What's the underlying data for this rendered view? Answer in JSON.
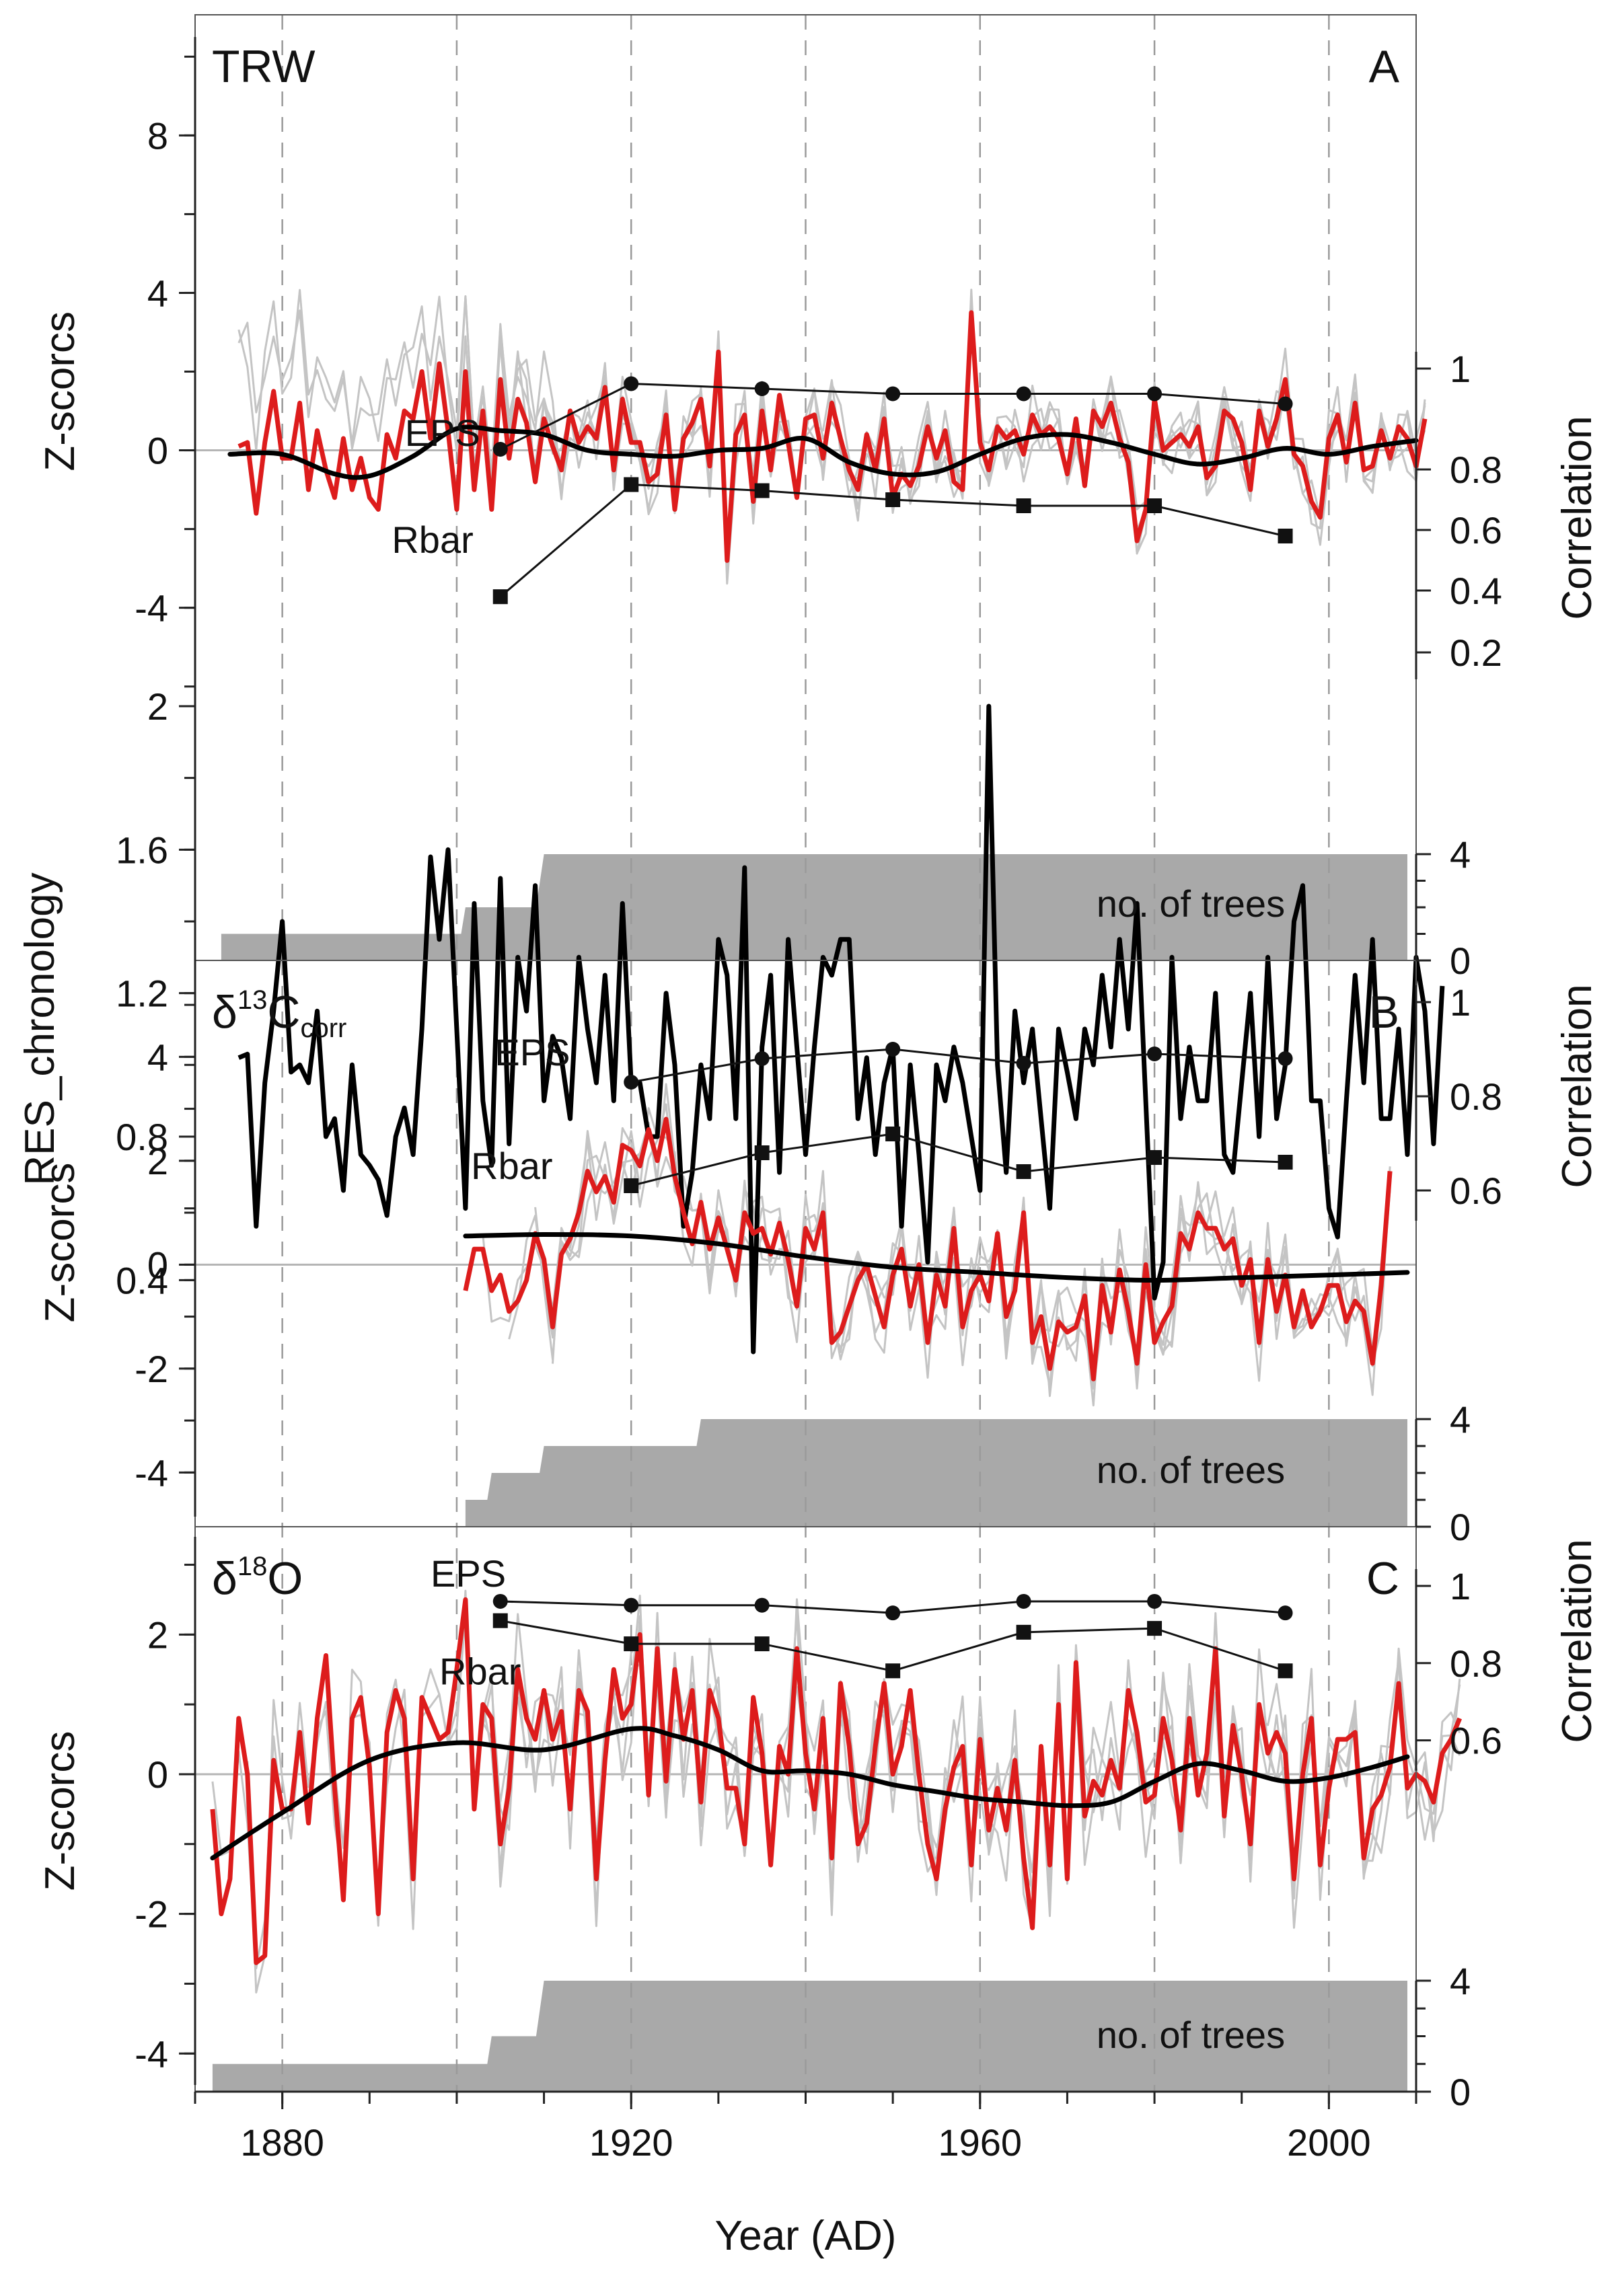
{
  "chart_data": {
    "type": "line",
    "xlabel": "Year (AD)",
    "xlim": [
      1870,
      2010
    ],
    "xticks": [
      1880,
      1920,
      1960,
      2000
    ],
    "gridlines_x": [
      1880,
      1900,
      1920,
      1940,
      1960,
      1980,
      2000
    ],
    "panels": [
      {
        "id": "A",
        "label": "A",
        "title": "TRW",
        "res": {
          "ylabel": "RES_chronology",
          "ylim": [
            0.2,
            2.0
          ],
          "ticks": [
            0.4,
            0.8,
            1.2,
            1.6,
            2.0
          ],
          "tick_labels": [
            "0.4",
            "0.8",
            "1.2",
            "1.6",
            "2"
          ],
          "start_year": 1875,
          "values": [
            1.02,
            1.03,
            0.55,
            0.95,
            1.15,
            1.4,
            0.98,
            1.0,
            0.95,
            1.15,
            0.8,
            0.85,
            0.65,
            1.0,
            0.75,
            0.72,
            0.68,
            0.58,
            0.8,
            0.88,
            0.75,
            1.1,
            1.58,
            1.35,
            1.6,
            1.1,
            0.6,
            1.45,
            0.9,
            0.72,
            1.52,
            0.78,
            1.3,
            1.15,
            1.5,
            0.9,
            1.08,
            1.02,
            0.85,
            1.3,
            1.1,
            0.95,
            1.25,
            0.9,
            1.45,
            0.95,
            0.95,
            0.8,
            0.8,
            1.2,
            1.0,
            0.55,
            0.7,
            1.0,
            0.85,
            1.35,
            1.25,
            0.85,
            1.55,
            0.2,
            1.05,
            1.25,
            0.7,
            1.35,
            1.05,
            0.75,
            1.05,
            1.3,
            1.25,
            1.35,
            1.35,
            0.85,
            1.02,
            0.75,
            0.95,
            1.05,
            0.55,
            1.0,
            0.75,
            0.45,
            1.0,
            0.9,
            1.05,
            0.95,
            0.8,
            0.65,
            2.0,
            1.0,
            0.7,
            1.15,
            0.95,
            1.1,
            0.85,
            0.6,
            1.1,
            0.98,
            0.85,
            1.1,
            1.0,
            1.25,
            1.05,
            1.35,
            1.1,
            1.45,
            0.9,
            0.35,
            0.45,
            1.3,
            0.85,
            1.05,
            0.9,
            0.9,
            1.2,
            0.75,
            0.7,
            0.95,
            1.2,
            0.8,
            1.3,
            0.85,
            1.0,
            1.4,
            1.5,
            0.9,
            0.9,
            0.6,
            0.52,
            0.9,
            1.25,
            0.95,
            1.35,
            0.85,
            0.85,
            1.1,
            0.75,
            1.3,
            1.15,
            0.78,
            1.22
          ]
        },
        "z": {
          "ylabel": "Z-scorcs",
          "ylim": [
            -6.5,
            10.5
          ],
          "ticks": [
            -4,
            0,
            4,
            8
          ],
          "tick_labels": [
            "-4",
            "0",
            "4",
            "8"
          ],
          "mean_start_year": 1875,
          "mean": [
            0.1,
            0.2,
            -1.6,
            0.2,
            1.5,
            -0.2,
            -0.2,
            1.2,
            -1.0,
            0.5,
            -0.5,
            -1.2,
            0.3,
            -1.0,
            -0.2,
            -1.2,
            -1.5,
            0.4,
            -0.2,
            1.0,
            0.8,
            2.0,
            0.3,
            2.2,
            0.5,
            -1.5,
            2.0,
            -1.0,
            1.0,
            -1.5,
            1.8,
            -0.2,
            1.3,
            0.7,
            -0.8,
            0.8,
            0.1,
            -0.5,
            1.0,
            0.2,
            0.6,
            0.3,
            1.6,
            -0.5,
            1.3,
            0.2,
            0.2,
            -0.8,
            -0.6,
            0.9,
            -1.5,
            0.3,
            0.7,
            1.3,
            -0.4,
            2.5,
            -2.8,
            0.4,
            0.9,
            -1.3,
            1.0,
            -0.5,
            1.4,
            0.2,
            -1.2,
            0.8,
            0.9,
            -0.2,
            1.2,
            0.3,
            -0.5,
            -1.0,
            0.4,
            -0.5,
            0.8,
            -1.2,
            -0.6,
            -0.9,
            -0.4,
            0.6,
            -0.2,
            0.5,
            -0.8,
            -1.0,
            3.5,
            0.2,
            -0.5,
            0.6,
            0.3,
            0.5,
            -0.1,
            0.9,
            0.4,
            0.6,
            0.3,
            -0.6,
            0.8,
            -0.9,
            1.0,
            0.6,
            1.2,
            0.3,
            -0.3,
            -2.3,
            -1.5,
            1.3,
            0.0,
            0.2,
            0.4,
            0.1,
            0.6,
            -0.7,
            -0.4,
            1.0,
            0.8,
            0.2,
            -1.0,
            1.0,
            0.1,
            0.8,
            1.8,
            -0.1,
            -0.4,
            -1.3,
            -1.7,
            0.3,
            0.9,
            -0.3,
            1.2,
            -0.5,
            -0.4,
            0.5,
            -0.2,
            0.6,
            0.3,
            -0.4,
            0.8
          ],
          "spline_x": [
            1874,
            1880,
            1886,
            1890,
            1895,
            1900,
            1905,
            1910,
            1915,
            1920,
            1925,
            1930,
            1935,
            1940,
            1945,
            1950,
            1955,
            1960,
            1965,
            1970,
            1975,
            1980,
            1985,
            1990,
            1995,
            2000,
            2005,
            2010
          ],
          "spline_y": [
            -0.1,
            -0.1,
            -0.6,
            -0.65,
            -0.15,
            0.55,
            0.5,
            0.4,
            0.0,
            -0.1,
            -0.15,
            0.0,
            0.05,
            0.3,
            -0.3,
            -0.6,
            -0.55,
            -0.1,
            0.3,
            0.4,
            0.2,
            -0.1,
            -0.35,
            -0.2,
            0.05,
            -0.1,
            0.1,
            0.25
          ],
          "individual_start_years": [
            1873,
            1875,
            1900,
            1905
          ],
          "zero_line": 0
        },
        "stats": {
          "ylabel": "Correlation",
          "ticks": [
            0.2,
            0.4,
            0.6,
            0.8,
            1
          ],
          "tick_labels": [
            "0.2",
            "0.4",
            "0.6",
            "0.8",
            "1"
          ],
          "years": [
            1905,
            1920,
            1935,
            1950,
            1965,
            1980,
            1995
          ],
          "eps_label": "EPS",
          "eps": [
            0.84,
            0.97,
            0.96,
            0.95,
            0.95,
            0.95,
            0.93
          ],
          "rbar_label": "Rbar",
          "rbar": [
            0.38,
            0.75,
            0.73,
            0.7,
            0.68,
            0.68,
            0.58
          ]
        },
        "trees": {
          "label": "no. of trees",
          "ticks": [
            0,
            4
          ],
          "tick_labels": [
            "0",
            "4"
          ],
          "steps": [
            [
              1873,
              1
            ],
            [
              1901,
              2
            ],
            [
              1910,
              4
            ],
            [
              2009,
              4
            ]
          ]
        }
      },
      {
        "id": "B",
        "label": "B",
        "title_main": "δ",
        "title_sup": "13",
        "title_elem": "C",
        "title_sub": "corr",
        "z": {
          "ylabel": "Z-scorcs",
          "ylim": [
            -4.85,
            5.7
          ],
          "ticks": [
            -4,
            -2,
            0,
            2,
            4
          ],
          "tick_labels": [
            "-4",
            "-2",
            "0",
            "2",
            "4"
          ],
          "mean_start_year": 1901,
          "mean": [
            -0.5,
            0.3,
            0.3,
            -0.5,
            -0.2,
            -0.9,
            -0.7,
            -0.3,
            0.6,
            0.1,
            -1.2,
            0.2,
            0.5,
            1.0,
            1.8,
            1.4,
            1.7,
            1.2,
            2.3,
            2.2,
            1.9,
            2.6,
            2.0,
            2.8,
            1.7,
            1.0,
            0.4,
            1.2,
            0.3,
            0.9,
            0.3,
            -0.3,
            1.0,
            0.6,
            0.7,
            0.2,
            0.8,
            0.1,
            -0.8,
            0.7,
            0.3,
            1.0,
            -1.5,
            -1.3,
            -0.8,
            -0.3,
            0.0,
            -0.6,
            -1.2,
            -0.2,
            0.3,
            -0.8,
            0.0,
            -1.5,
            -0.2,
            -0.8,
            0.7,
            -1.2,
            -0.5,
            -0.2,
            -0.7,
            0.6,
            -1.0,
            -0.5,
            1.0,
            -1.5,
            -1.0,
            -2.0,
            -1.1,
            -1.3,
            -1.2,
            -0.6,
            -2.2,
            -0.4,
            -1.3,
            -0.1,
            -0.9,
            -1.9,
            0.0,
            -1.5,
            -1.1,
            -0.8,
            0.6,
            0.3,
            1.0,
            0.7,
            0.7,
            0.3,
            0.5,
            -0.4,
            0.1,
            -1.5,
            0.1,
            -0.9,
            -0.2,
            -1.2,
            -0.5,
            -1.2,
            -0.9,
            -0.4,
            -0.4,
            -1.1,
            -0.7,
            -0.9,
            -1.9,
            -0.4,
            1.8
          ],
          "spline_x": [
            1901,
            1910,
            1920,
            1930,
            1940,
            1950,
            1960,
            1970,
            1980,
            1990,
            2000,
            2009
          ],
          "spline_y": [
            0.55,
            0.58,
            0.55,
            0.4,
            0.15,
            -0.05,
            -0.15,
            -0.25,
            -0.3,
            -0.25,
            -0.2,
            -0.15
          ],
          "individual_start_years": [
            1903,
            1906,
            1909,
            1911
          ],
          "zero_line": 0
        },
        "stats": {
          "ylabel": "Correlation",
          "ticks": [
            0.6,
            0.8,
            1
          ],
          "tick_labels": [
            "0.6",
            "0.8",
            "1"
          ],
          "years": [
            1920,
            1935,
            1950,
            1965,
            1980,
            1995
          ],
          "eps_label": "EPS",
          "eps": [
            0.83,
            0.88,
            0.9,
            0.87,
            0.89,
            0.88
          ],
          "rbar_label": "Rbar",
          "rbar": [
            0.61,
            0.68,
            0.72,
            0.64,
            0.67,
            0.66
          ]
        },
        "trees": {
          "label": "no. of trees",
          "ticks": [
            0,
            4
          ],
          "tick_labels": [
            "0",
            "4"
          ],
          "steps": [
            [
              1901,
              1
            ],
            [
              1904,
              2
            ],
            [
              1910,
              3
            ],
            [
              1928,
              4
            ],
            [
              2009,
              4
            ]
          ]
        }
      },
      {
        "id": "C",
        "label": "C",
        "title_main": "δ",
        "title_sup": "18",
        "title_elem": "O",
        "z": {
          "ylabel": "Z-scorcs",
          "ylim": [
            -4.45,
            3.4
          ],
          "ticks": [
            -4,
            -2,
            0,
            2
          ],
          "tick_labels": [
            "-4",
            "-2",
            "0",
            "2"
          ],
          "mean_start_year": 1872,
          "mean": [
            -0.5,
            -2.0,
            -1.5,
            0.8,
            0.0,
            -2.7,
            -2.6,
            0.2,
            -0.5,
            -0.5,
            0.6,
            -0.7,
            0.8,
            1.7,
            -0.2,
            -1.8,
            0.8,
            1.1,
            0.1,
            -2.0,
            0.6,
            1.2,
            0.8,
            -1.5,
            1.1,
            0.8,
            0.5,
            0.6,
            1.5,
            2.5,
            -0.5,
            1.0,
            0.8,
            -1.0,
            -0.2,
            1.5,
            0.8,
            0.5,
            1.2,
            0.5,
            0.9,
            -0.5,
            1.2,
            0.9,
            -1.5,
            0.2,
            1.5,
            0.8,
            1.0,
            2.0,
            -0.3,
            1.8,
            -0.1,
            1.5,
            0.5,
            1.2,
            -0.4,
            1.2,
            0.8,
            -0.2,
            -0.2,
            -1.0,
            1.1,
            0.3,
            -1.3,
            0.4,
            0.0,
            1.8,
            0.3,
            -0.5,
            0.8,
            -1.2,
            1.3,
            0.4,
            -1.0,
            -0.7,
            0.4,
            1.3,
            0.0,
            0.4,
            1.2,
            0.0,
            -1.0,
            -1.5,
            -0.5,
            0.1,
            0.4,
            -1.3,
            0.5,
            -0.8,
            -0.2,
            -0.8,
            0.2,
            -1.2,
            -2.2,
            0.4,
            -1.3,
            1.0,
            -1.5,
            1.6,
            -0.6,
            -0.1,
            -0.3,
            0.2,
            -0.2,
            1.2,
            0.6,
            -0.4,
            -0.3,
            0.8,
            0.2,
            -0.8,
            0.8,
            -0.3,
            0.3,
            1.8,
            -0.6,
            0.7,
            0.0,
            -1.0,
            1.0,
            0.3,
            0.6,
            0.3,
            -1.5,
            0.0,
            0.8,
            -1.3,
            -0.2,
            0.5,
            0.5,
            0.6,
            -1.2,
            -0.5,
            -0.3,
            0.1,
            1.3,
            -0.2,
            0.0,
            -0.1,
            -0.4,
            0.3,
            0.5,
            0.8
          ],
          "spline_x": [
            1872,
            1880,
            1890,
            1900,
            1910,
            1920,
            1925,
            1930,
            1935,
            1940,
            1945,
            1950,
            1955,
            1960,
            1965,
            1970,
            1975,
            1980,
            1985,
            1990,
            1995,
            2000,
            2005,
            2009
          ],
          "spline_y": [
            -1.2,
            -0.55,
            0.2,
            0.45,
            0.35,
            0.65,
            0.55,
            0.35,
            0.05,
            0.05,
            0.0,
            -0.15,
            -0.25,
            -0.35,
            -0.4,
            -0.45,
            -0.4,
            -0.1,
            0.15,
            0.05,
            -0.1,
            -0.05,
            0.1,
            0.25
          ],
          "individual_start_years": [
            1872,
            1876,
            1900,
            1903
          ],
          "zero_line": 0
        },
        "stats": {
          "ylabel": "Correlation",
          "ticks": [
            0.6,
            0.8,
            1
          ],
          "tick_labels": [
            "0.6",
            "0.8",
            "1"
          ],
          "years": [
            1905,
            1920,
            1935,
            1950,
            1965,
            1980,
            1995
          ],
          "eps_label": "EPS",
          "eps": [
            0.96,
            0.95,
            0.95,
            0.93,
            0.96,
            0.96,
            0.93
          ],
          "rbar_label": "Rbar",
          "rbar": [
            0.91,
            0.85,
            0.85,
            0.78,
            0.88,
            0.89,
            0.78
          ]
        },
        "trees": {
          "label": "no. of trees",
          "ticks": [
            0,
            4
          ],
          "tick_labels": [
            "0",
            "4"
          ],
          "steps": [
            [
              1872,
              1
            ],
            [
              1904,
              2
            ],
            [
              1910,
              4
            ],
            [
              2009,
              4
            ]
          ]
        }
      }
    ]
  },
  "colors": {
    "mean_series": "#dd1c1c",
    "individual_series": "#c4c4c4",
    "spline": "#000000",
    "res_chronology": "#000000",
    "trees_fill": "#a9a9a9",
    "gridline": "#9a9a9a",
    "frame": "#555555"
  }
}
